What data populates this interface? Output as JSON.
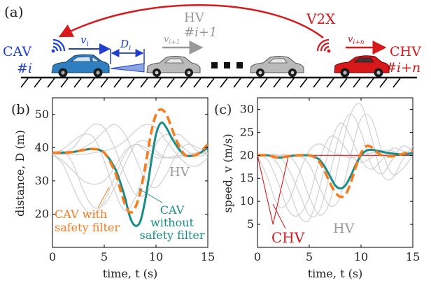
{
  "top": {
    "panel_label": "(a)",
    "v2x_label": "V2X",
    "cav_label": "CAV",
    "cav_index": "#i",
    "v_i": "v",
    "v_i_sub": "i",
    "d_i": "D",
    "d_i_sub": "i",
    "hv_label": "HV",
    "hv_index": "#i+1",
    "v_i1": "v",
    "v_i1_sub": "i+1",
    "v_in": "v",
    "v_in_sub": "i+n",
    "chv_label": "CHV",
    "chv_index": "#i+n",
    "colors": {
      "v2x": "#d7191c",
      "cav": "#1f3fd0",
      "hv": "#999999",
      "chv": "#d7191c"
    }
  },
  "chart_data": [
    {
      "type": "line",
      "panel": "(b)",
      "xlabel": "time, t (s)",
      "ylabel": "distance, D (m)",
      "xlim": [
        0,
        15
      ],
      "ylim": [
        10,
        55
      ],
      "xticks": [
        0,
        5,
        10,
        15
      ],
      "yticks": [
        20,
        30,
        40,
        50
      ],
      "annotations": [
        {
          "text": "HV",
          "color": "#999999"
        },
        {
          "text": "CAV with",
          "color": "#f57c1f"
        },
        {
          "text": "safety filter",
          "color": "#f57c1f"
        },
        {
          "text": "CAV",
          "color": "#1a8c87"
        },
        {
          "text": "without",
          "color": "#1a8c87"
        },
        {
          "text": "safety filter",
          "color": "#1a8c87"
        }
      ],
      "series": [
        {
          "style": "cav_nofilter",
          "color": "#1a8c87",
          "x": [
            0,
            1,
            2,
            3,
            4,
            5,
            6,
            6.5,
            7,
            7.5,
            8,
            8.5,
            9,
            9.5,
            10,
            10.5,
            11,
            11.5,
            12,
            12.5,
            13,
            14,
            15
          ],
          "y": [
            38.5,
            38.5,
            38.7,
            39.3,
            39.6,
            38.5,
            34,
            30,
            25,
            19,
            16.5,
            18,
            25,
            35,
            44,
            47.5,
            46,
            43,
            40.5,
            38.5,
            37.5,
            38,
            40
          ]
        },
        {
          "style": "cav_filter",
          "color": "#f57c1f",
          "x": [
            0,
            1,
            2,
            3,
            4,
            5,
            6,
            6.5,
            7,
            7.5,
            8,
            8.5,
            9,
            9.5,
            10,
            10.5,
            11,
            11.5,
            12,
            12.5,
            13,
            14,
            15
          ],
          "y": [
            38.5,
            38.5,
            38.7,
            39.3,
            39.6,
            38.5,
            33,
            28,
            23,
            20.5,
            22,
            27,
            35,
            44,
            50,
            51.5,
            50,
            46,
            42,
            39,
            37.5,
            38,
            41
          ]
        },
        {
          "style": "hv",
          "color": "#d0d0d0",
          "x": [
            0,
            1,
            2,
            3,
            4,
            5,
            6,
            7,
            8,
            9,
            10,
            11,
            12,
            13,
            14,
            15
          ],
          "y": [
            38,
            36,
            33,
            30,
            29,
            30,
            34,
            39,
            41,
            40,
            38,
            37,
            37.5,
            38,
            38.5,
            38.5
          ]
        },
        {
          "style": "hv",
          "color": "#d0d0d0",
          "x": [
            0,
            1,
            2,
            3,
            4,
            5,
            6,
            7,
            8,
            9,
            10,
            11,
            12,
            13,
            14,
            15
          ],
          "y": [
            38,
            35,
            28,
            22,
            20,
            24,
            31,
            38,
            41,
            39,
            37,
            37,
            37.5,
            38,
            38.5,
            38.5
          ]
        },
        {
          "style": "hv",
          "color": "#d0d0d0",
          "x": [
            0,
            1,
            2,
            3,
            4,
            5,
            6,
            7,
            8,
            9,
            10,
            11,
            12,
            13,
            14,
            15
          ],
          "y": [
            38,
            39,
            35,
            27,
            22,
            23,
            28,
            35,
            41,
            42,
            39,
            37,
            37,
            37.5,
            38,
            38.5
          ]
        },
        {
          "style": "hv",
          "color": "#d0d0d0",
          "x": [
            0,
            1,
            2,
            3,
            4,
            5,
            6,
            7,
            8,
            9,
            10,
            11,
            12,
            13,
            14,
            15
          ],
          "y": [
            38,
            39.5,
            42,
            44,
            43,
            36,
            27,
            21,
            25,
            33,
            41,
            44,
            42,
            39,
            37.5,
            38
          ]
        },
        {
          "style": "hv",
          "color": "#d0d0d0",
          "x": [
            0,
            1,
            2,
            3,
            4,
            5,
            6,
            7,
            8,
            9,
            10,
            11,
            12,
            13,
            14,
            15
          ],
          "y": [
            38,
            38.5,
            40,
            44,
            47,
            46,
            40,
            32,
            26,
            26,
            32,
            40,
            44,
            42,
            39,
            38
          ]
        },
        {
          "style": "hv",
          "color": "#d0d0d0",
          "x": [
            0,
            1,
            2,
            3,
            4,
            5,
            6,
            7,
            8,
            9,
            10,
            11,
            12,
            13,
            14,
            15
          ],
          "y": [
            38,
            38,
            38.5,
            40,
            42,
            45,
            47,
            44,
            37,
            30,
            28,
            32,
            38,
            41,
            40,
            38.5
          ]
        },
        {
          "style": "hv",
          "color": "#d0d0d0",
          "x": [
            0,
            1,
            2,
            3,
            4,
            5,
            6,
            7,
            8,
            9,
            10,
            11,
            12,
            13,
            14,
            15
          ],
          "y": [
            38,
            38,
            38,
            38,
            38.5,
            39,
            40,
            42,
            45,
            47,
            46,
            42,
            38,
            35,
            34.5,
            37
          ]
        }
      ]
    },
    {
      "type": "line",
      "panel": "(c)",
      "xlabel": "time, t (s)",
      "ylabel": "speed, v (m/s)",
      "xlim": [
        0,
        15
      ],
      "ylim": [
        0,
        32.5
      ],
      "xticks": [
        0,
        5,
        10,
        15
      ],
      "yticks": [
        5,
        10,
        15,
        20,
        25,
        30
      ],
      "annotations": [
        {
          "text": "CHV",
          "color": "#d7191c"
        },
        {
          "text": "HV",
          "color": "#999999"
        }
      ],
      "series": [
        {
          "style": "chv",
          "color": "#d7191c",
          "x": [
            0,
            1.5,
            3,
            3.01,
            10,
            10.01,
            15
          ],
          "y": [
            20,
            5,
            20,
            20,
            20,
            20,
            20
          ]
        },
        {
          "style": "hv",
          "color": "#d0d0d0",
          "x": [
            0,
            1,
            2,
            3,
            4,
            5,
            6,
            7,
            8,
            9,
            10,
            11,
            12,
            13,
            14,
            15
          ],
          "y": [
            20,
            15,
            9,
            10,
            16,
            21,
            22.5,
            21,
            20,
            19.5,
            20,
            20.5,
            20.5,
            20,
            20,
            20
          ]
        },
        {
          "style": "hv",
          "color": "#d0d0d0",
          "x": [
            0,
            1,
            2,
            3,
            4,
            5,
            6,
            7,
            8,
            9,
            10,
            11,
            12,
            13,
            14,
            15
          ],
          "y": [
            20,
            19,
            14,
            8,
            7,
            11,
            19,
            24,
            23,
            20,
            18.5,
            19.5,
            21,
            21,
            20,
            20
          ]
        },
        {
          "style": "hv",
          "color": "#d0d0d0",
          "x": [
            0,
            1,
            2,
            3,
            4,
            5,
            6,
            7,
            8,
            9,
            10,
            11,
            12,
            13,
            14,
            15
          ],
          "y": [
            20,
            20,
            18,
            13,
            7,
            6,
            13,
            22,
            27,
            24,
            19,
            17,
            19,
            21.5,
            21,
            20
          ]
        },
        {
          "style": "hv",
          "color": "#d0d0d0",
          "x": [
            0,
            1,
            2,
            3,
            4,
            5,
            6,
            7,
            8,
            9,
            10,
            11,
            12,
            13,
            14,
            15
          ],
          "y": [
            20,
            20,
            20,
            17,
            12,
            7,
            8,
            16,
            25,
            29,
            25,
            18,
            16,
            19,
            22,
            21
          ]
        },
        {
          "style": "hv",
          "color": "#d0d0d0",
          "x": [
            0,
            1,
            2,
            3,
            4,
            5,
            6,
            7,
            8,
            9,
            10,
            11,
            12,
            13,
            14,
            15
          ],
          "y": [
            20,
            20,
            20,
            20,
            17,
            11,
            7,
            10,
            20,
            29,
            31,
            24,
            16,
            15,
            19,
            22
          ]
        },
        {
          "style": "hv",
          "color": "#d0d0d0",
          "x": [
            0,
            1,
            2,
            3,
            4,
            5,
            6,
            7,
            8,
            9,
            10,
            11,
            12,
            13,
            14,
            15
          ],
          "y": [
            20,
            20,
            20,
            20,
            20,
            18,
            13,
            9,
            11,
            20,
            28,
            28,
            21,
            16,
            17,
            20
          ]
        },
        {
          "style": "cav_nofilter",
          "color": "#1a8c87",
          "x": [
            0,
            1,
            2,
            3,
            4,
            5,
            5.5,
            6,
            6.5,
            7,
            7.5,
            8,
            8.5,
            9,
            9.5,
            10,
            10.5,
            11,
            12,
            13,
            14,
            15
          ],
          "y": [
            20,
            20,
            19.5,
            19.8,
            20,
            20,
            19.7,
            19,
            17.5,
            15.5,
            13.5,
            12.8,
            13.5,
            15.5,
            18,
            20,
            21,
            21.2,
            20.8,
            20.4,
            20.2,
            20.5
          ]
        },
        {
          "style": "cav_filter",
          "color": "#f57c1f",
          "x": [
            0,
            1,
            2,
            3,
            4,
            5,
            5.5,
            6,
            6.5,
            7,
            7.5,
            8,
            8.5,
            9,
            9.5,
            10,
            10.5,
            11,
            11.5,
            12,
            13,
            14,
            15
          ],
          "y": [
            20,
            20,
            19.5,
            19.8,
            20,
            20,
            19.6,
            18.5,
            16.5,
            14,
            12,
            11,
            11.5,
            14,
            17.5,
            20.5,
            22,
            21.8,
            20.8,
            20,
            19.8,
            20.3,
            21
          ]
        }
      ]
    }
  ]
}
